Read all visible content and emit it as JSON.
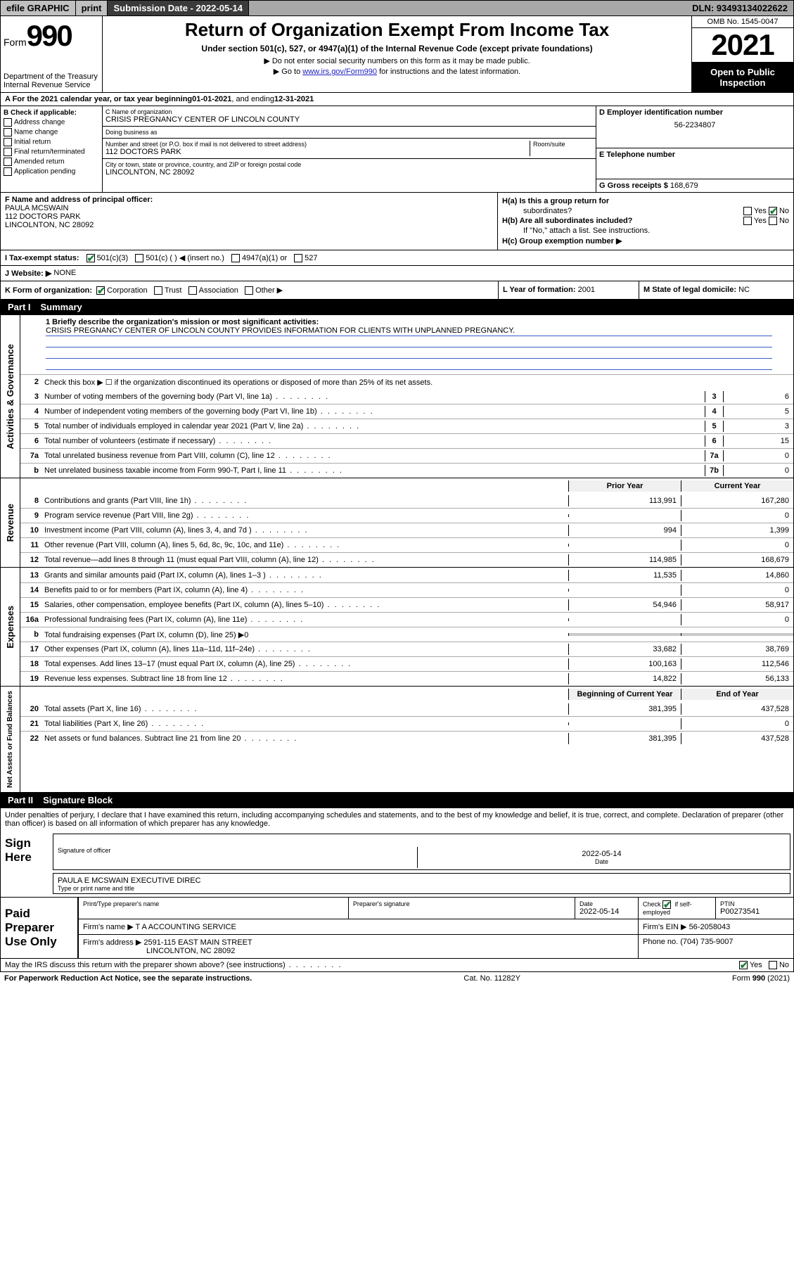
{
  "topbar": {
    "efile": "efile GRAPHIC",
    "print": "print",
    "subdate_label": "Submission Date - 2022-05-14",
    "dln": "DLN: 93493134022622"
  },
  "header": {
    "form_prefix": "Form",
    "form_number": "990",
    "dept": "Department of the Treasury",
    "irs": "Internal Revenue Service",
    "title": "Return of Organization Exempt From Income Tax",
    "subtitle": "Under section 501(c), 527, or 4947(a)(1) of the Internal Revenue Code (except private foundations)",
    "line1": "▶ Do not enter social security numbers on this form as it may be made public.",
    "line2_pre": "▶ Go to ",
    "line2_link": "www.irs.gov/Form990",
    "line2_post": " for instructions and the latest information.",
    "omb": "OMB No. 1545-0047",
    "year": "2021",
    "open": "Open to Public Inspection"
  },
  "rowA": {
    "label": "A For the 2021 calendar year, or tax year beginning ",
    "begin": "01-01-2021",
    "mid": " , and ending ",
    "end": "12-31-2021"
  },
  "boxB": {
    "hdr": "B Check if applicable:",
    "items": [
      "Address change",
      "Name change",
      "Initial return",
      "Final return/terminated",
      "Amended return",
      "Application pending"
    ]
  },
  "boxC": {
    "label": "C Name of organization",
    "name": "CRISIS PREGNANCY CENTER OF LINCOLN COUNTY",
    "dba_label": "Doing business as",
    "dba": "",
    "addr_label": "Number and street (or P.O. box if mail is not delivered to street address)",
    "room_label": "Room/suite",
    "addr": "112 DOCTORS PARK",
    "city_label": "City or town, state or province, country, and ZIP or foreign postal code",
    "city": "LINCOLNTON, NC  28092"
  },
  "boxD": {
    "label": "D Employer identification number",
    "ein": "56-2234807"
  },
  "boxE": {
    "label": "E Telephone number",
    "val": ""
  },
  "boxG": {
    "label": "G Gross receipts $",
    "val": "168,679"
  },
  "boxF": {
    "label": "F Name and address of principal officer:",
    "name": "PAULA MCSWAIN",
    "addr1": "112 DOCTORS PARK",
    "addr2": "LINCOLNTON, NC  28092"
  },
  "boxH": {
    "ha_label": "H(a)  Is this a group return for",
    "ha_label2": "subordinates?",
    "hb_label": "H(b)  Are all subordinates included?",
    "hb_note": "If \"No,\" attach a list. See instructions.",
    "hc_label": "H(c)  Group exemption number ▶",
    "yes": "Yes",
    "no": "No"
  },
  "rowI": {
    "label": "I    Tax-exempt status:",
    "opt1": "501(c)(3)",
    "opt2": "501(c) (   ) ◀ (insert no.)",
    "opt3": "4947(a)(1) or",
    "opt4": "527"
  },
  "rowJ": {
    "label": "J    Website: ▶",
    "val": "NONE"
  },
  "rowK": {
    "label": "K Form of organization:",
    "opts": [
      "Corporation",
      "Trust",
      "Association",
      "Other ▶"
    ],
    "L_label": "L Year of formation:",
    "L_val": "2001",
    "M_label": "M State of legal domicile:",
    "M_val": "NC"
  },
  "partI": {
    "num": "Part I",
    "title": "Summary",
    "q1_label": "1  Briefly describe the organization's mission or most significant activities:",
    "q1_text": "CRISIS PREGNANCY CENTER OF LINCOLN COUNTY PROVIDES INFORMATION FOR CLIENTS WITH UNPLANNED PREGNANCY.",
    "q2": "Check this box ▶ ☐  if the organization discontinued its operations or disposed of more than 25% of its net assets.",
    "col_prior": "Prior Year",
    "col_curr": "Current Year",
    "col_boy": "Beginning of Current Year",
    "col_eoy": "End of Year",
    "side_gov": "Activities & Governance",
    "side_rev": "Revenue",
    "side_exp": "Expenses",
    "side_net": "Net Assets or Fund Balances",
    "rows_gov": [
      {
        "n": "3",
        "t": "Number of voting members of the governing body (Part VI, line 1a)",
        "box": "3",
        "v": "6"
      },
      {
        "n": "4",
        "t": "Number of independent voting members of the governing body (Part VI, line 1b)",
        "box": "4",
        "v": "5"
      },
      {
        "n": "5",
        "t": "Total number of individuals employed in calendar year 2021 (Part V, line 2a)",
        "box": "5",
        "v": "3"
      },
      {
        "n": "6",
        "t": "Total number of volunteers (estimate if necessary)",
        "box": "6",
        "v": "15"
      },
      {
        "n": "7a",
        "t": "Total unrelated business revenue from Part VIII, column (C), line 12",
        "box": "7a",
        "v": "0"
      },
      {
        "n": "b",
        "t": "Net unrelated business taxable income from Form 990-T, Part I, line 11",
        "box": "7b",
        "v": "0"
      }
    ],
    "rows_rev": [
      {
        "n": "8",
        "t": "Contributions and grants (Part VIII, line 1h)",
        "p": "113,991",
        "c": "167,280"
      },
      {
        "n": "9",
        "t": "Program service revenue (Part VIII, line 2g)",
        "p": "",
        "c": "0"
      },
      {
        "n": "10",
        "t": "Investment income (Part VIII, column (A), lines 3, 4, and 7d )",
        "p": "994",
        "c": "1,399"
      },
      {
        "n": "11",
        "t": "Other revenue (Part VIII, column (A), lines 5, 6d, 8c, 9c, 10c, and 11e)",
        "p": "",
        "c": "0"
      },
      {
        "n": "12",
        "t": "Total revenue—add lines 8 through 11 (must equal Part VIII, column (A), line 12)",
        "p": "114,985",
        "c": "168,679"
      }
    ],
    "rows_exp": [
      {
        "n": "13",
        "t": "Grants and similar amounts paid (Part IX, column (A), lines 1–3 )",
        "p": "11,535",
        "c": "14,860"
      },
      {
        "n": "14",
        "t": "Benefits paid to or for members (Part IX, column (A), line 4)",
        "p": "",
        "c": "0"
      },
      {
        "n": "15",
        "t": "Salaries, other compensation, employee benefits (Part IX, column (A), lines 5–10)",
        "p": "54,946",
        "c": "58,917"
      },
      {
        "n": "16a",
        "t": "Professional fundraising fees (Part IX, column (A), line 11e)",
        "p": "",
        "c": "0"
      },
      {
        "n": "b",
        "t": "Total fundraising expenses (Part IX, column (D), line 25) ▶0",
        "shade": true
      },
      {
        "n": "17",
        "t": "Other expenses (Part IX, column (A), lines 11a–11d, 11f–24e)",
        "p": "33,682",
        "c": "38,769"
      },
      {
        "n": "18",
        "t": "Total expenses. Add lines 13–17 (must equal Part IX, column (A), line 25)",
        "p": "100,163",
        "c": "112,546"
      },
      {
        "n": "19",
        "t": "Revenue less expenses. Subtract line 18 from line 12",
        "p": "14,822",
        "c": "56,133"
      }
    ],
    "rows_net": [
      {
        "n": "20",
        "t": "Total assets (Part X, line 16)",
        "p": "381,395",
        "c": "437,528"
      },
      {
        "n": "21",
        "t": "Total liabilities (Part X, line 26)",
        "p": "",
        "c": "0"
      },
      {
        "n": "22",
        "t": "Net assets or fund balances. Subtract line 21 from line 20",
        "p": "381,395",
        "c": "437,528"
      }
    ]
  },
  "partII": {
    "num": "Part II",
    "title": "Signature Block",
    "penalties": "Under penalties of perjury, I declare that I have examined this return, including accompanying schedules and statements, and to the best of my knowledge and belief, it is true, correct, and complete. Declaration of preparer (other than officer) is based on all information of which preparer has any knowledge.",
    "sign_here": "Sign Here",
    "sig_officer": "Signature of officer",
    "sig_date": "Date",
    "sig_date_val": "2022-05-14",
    "officer_name": "PAULA E MCSWAIN  EXECUTIVE DIREC",
    "type_name": "Type or print name and title",
    "paid": "Paid Preparer Use Only",
    "pp_name_lbl": "Print/Type preparer's name",
    "pp_sig_lbl": "Preparer's signature",
    "pp_date_lbl": "Date",
    "pp_date": "2022-05-14",
    "pp_check_lbl": "Check ☑ if self-employed",
    "pp_ptin_lbl": "PTIN",
    "pp_ptin": "P00273541",
    "firm_name_lbl": "Firm's name    ▶",
    "firm_name": "T A ACCOUNTING SERVICE",
    "firm_ein_lbl": "Firm's EIN ▶",
    "firm_ein": "56-2058043",
    "firm_addr_lbl": "Firm's address ▶",
    "firm_addr1": "2591-115 EAST MAIN STREET",
    "firm_addr2": "LINCOLNTON, NC  28092",
    "firm_phone_lbl": "Phone no.",
    "firm_phone": "(704) 735-9007",
    "may_irs": "May the IRS discuss this return with the preparer shown above? (see instructions)",
    "yes": "Yes",
    "no": "No"
  },
  "footer": {
    "pra": "For Paperwork Reduction Act Notice, see the separate instructions.",
    "cat": "Cat. No. 11282Y",
    "form": "Form 990 (2021)"
  },
  "colors": {
    "accent_green": "#1a7f3c",
    "link_blue": "#2020c0",
    "shade": "#c9c9c9"
  }
}
